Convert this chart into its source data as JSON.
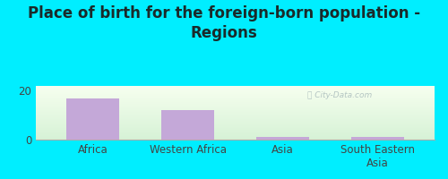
{
  "title": "Place of birth for the foreign-born population -\nRegions",
  "categories": [
    "Africa",
    "Western Africa",
    "Asia",
    "South Eastern\nAsia"
  ],
  "values": [
    17,
    12,
    1,
    1
  ],
  "bar_color": "#c4a8d8",
  "background_outer": "#00eeff",
  "yticks": [
    0,
    20
  ],
  "ylim": [
    0,
    22
  ],
  "title_fontsize": 12,
  "tick_fontsize": 8.5,
  "watermark": "ⓘ City-Data.com",
  "chart_bg_top": "#f8fef0",
  "chart_bg_bottom": "#d8f0d8",
  "title_color": "#1a2a2a"
}
